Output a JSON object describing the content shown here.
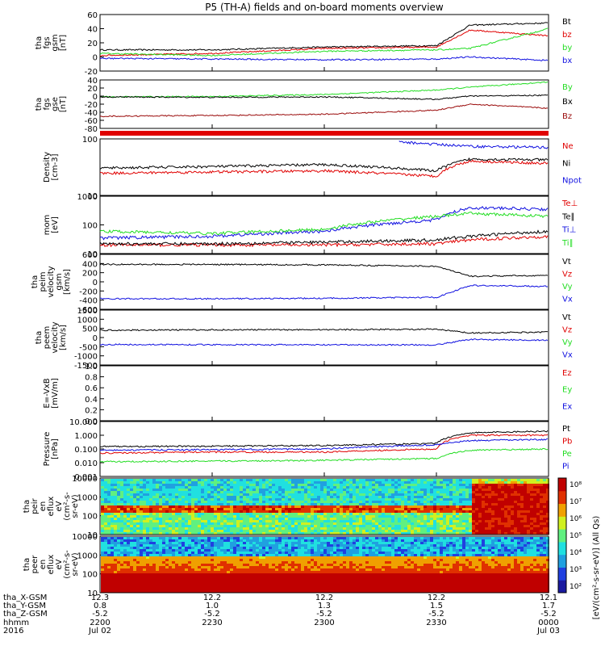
{
  "title": "P5 (TH-A) fields and on-board moments overview",
  "colors": {
    "black": "#000000",
    "red": "#e00000",
    "green": "#22dd22",
    "blue": "#1010e0",
    "darkred": "#9a0a0a"
  },
  "panels": [
    {
      "id": "fgs-gsm",
      "ylabel": [
        "tha",
        "fgs",
        "gsm",
        "[nT]"
      ],
      "ticks": [
        "60",
        "40",
        "20",
        "0",
        "-20"
      ],
      "legend": [
        {
          "t": "Bt",
          "c": "black"
        },
        {
          "t": "bz",
          "c": "red"
        },
        {
          "t": "by",
          "c": "green"
        },
        {
          "t": "bx",
          "c": "blue"
        }
      ]
    },
    {
      "id": "fgs-gse",
      "ylabel": [
        "tha",
        "fgs",
        "gse",
        "[nT]"
      ],
      "ticks": [
        "40",
        "20",
        "0",
        "-20",
        "-40",
        "-60",
        "-80"
      ],
      "legend": [
        {
          "t": "By",
          "c": "green"
        },
        {
          "t": "Bx",
          "c": "black"
        },
        {
          "t": "Bz",
          "c": "darkred"
        }
      ]
    },
    {
      "id": "density",
      "ylabel": [
        "Density",
        "[cm-3]"
      ],
      "ticks": [
        "100",
        "10"
      ],
      "legend": [
        {
          "t": "Ne",
          "c": "red"
        },
        {
          "t": "Ni",
          "c": "black"
        },
        {
          "t": "Npot",
          "c": "blue"
        }
      ]
    },
    {
      "id": "temperature",
      "ylabel": [
        "mom",
        "[eV]"
      ],
      "ticks": [
        "1000",
        "100",
        "10"
      ],
      "legend": [
        {
          "t": "Te⊥",
          "c": "red"
        },
        {
          "t": "Te∥",
          "c": "black"
        },
        {
          "t": "Ti⊥",
          "c": "blue"
        },
        {
          "t": "Ti∥",
          "c": "green"
        }
      ]
    },
    {
      "id": "peim-velocity",
      "ylabel": [
        "tha",
        "peim",
        "velocity",
        "gsm",
        "[km/s]"
      ],
      "ticks": [
        "600",
        "400",
        "200",
        "0",
        "-200",
        "-400",
        "-600"
      ],
      "legend": [
        {
          "t": "Vt",
          "c": "black"
        },
        {
          "t": "Vz",
          "c": "red"
        },
        {
          "t": "Vy",
          "c": "green"
        },
        {
          "t": "Vx",
          "c": "blue"
        }
      ]
    },
    {
      "id": "peem-velocity",
      "ylabel": [
        "tha",
        "peem",
        "velocity",
        "[km/s]"
      ],
      "ticks": [
        "1500",
        "1000",
        "500",
        "0",
        "-500",
        "-1000",
        "-1500"
      ],
      "legend": [
        {
          "t": "Vt",
          "c": "black"
        },
        {
          "t": "Vz",
          "c": "red"
        },
        {
          "t": "Vy",
          "c": "green"
        },
        {
          "t": "Vx",
          "c": "blue"
        }
      ]
    },
    {
      "id": "efield",
      "ylabel": [
        "E=-VxB",
        "[mV/m]"
      ],
      "ticks": [
        "1.0",
        "0.8",
        "0.6",
        "0.4",
        "0.2",
        "0.0"
      ],
      "legend": [
        {
          "t": "Ez",
          "c": "red"
        },
        {
          "t": "Ey",
          "c": "green"
        },
        {
          "t": "Ex",
          "c": "blue"
        }
      ]
    },
    {
      "id": "pressure",
      "ylabel": [
        "Pressure",
        "[nPa]"
      ],
      "ticks": [
        "10.000",
        "1.000",
        "0.100",
        "0.010",
        "0.001"
      ],
      "legend": [
        {
          "t": "Pt",
          "c": "black"
        },
        {
          "t": "Pb",
          "c": "red"
        },
        {
          "t": "Pe",
          "c": "green"
        },
        {
          "t": "Pi",
          "c": "blue"
        }
      ]
    },
    {
      "id": "peir-spectrogram",
      "ylabel": [
        "tha",
        "peir",
        "en",
        "eflux",
        "eV",
        "(cm²-s-",
        "sr-eV)"
      ],
      "ticks": [
        "10000",
        "1000",
        "100",
        "10"
      ],
      "legend": []
    },
    {
      "id": "peer-spectrogram",
      "ylabel": [
        "tha",
        "peer",
        "en",
        "eflux",
        "eV",
        "(cm²-s-",
        "sr-eV)"
      ],
      "ticks": [
        "10000",
        "1000",
        "100",
        "10"
      ],
      "legend": []
    }
  ],
  "colorbar": {
    "ticks": [
      "10⁸",
      "10⁷",
      "10⁶",
      "10⁵",
      "10⁴",
      "10³",
      "10²"
    ],
    "label": "[eV/(cm²-s-sr-eV)] (All Qs)"
  },
  "xaxis": {
    "row_labels": [
      "tha_X-GSM",
      "tha_Y-GSM",
      "tha_Z-GSM",
      "hhmm",
      "2016"
    ],
    "columns": [
      [
        "12.3",
        "0.8",
        "-5.2",
        "2200",
        "Jul 02"
      ],
      [
        "12.2",
        "1.0",
        "-5.2",
        "2230",
        ""
      ],
      [
        "12.2",
        "1.3",
        "-5.2",
        "2300",
        ""
      ],
      [
        "12.2",
        "1.5",
        "-5.2",
        "2330",
        ""
      ],
      [
        "12.1",
        "1.7",
        "-5.2",
        "0000",
        "Jul 03"
      ]
    ]
  },
  "chart_data": {
    "type": "line",
    "title": "P5 (TH-A) fields and on-board moments overview",
    "x_time_range": [
      "2016-07-02 22:00",
      "2016-07-03 00:00"
    ],
    "xlabel": "hhmm",
    "series": [
      {
        "panel": "fgs-gsm",
        "name": "Bt",
        "x": [
          "22:00",
          "22:30",
          "23:00",
          "23:30",
          "23:39",
          "00:00"
        ],
        "values": [
          10,
          10,
          14,
          16,
          45,
          48
        ],
        "ylim": [
          -20,
          60
        ]
      },
      {
        "panel": "fgs-gsm",
        "name": "bz",
        "x": [
          "22:00",
          "22:30",
          "23:00",
          "23:30",
          "23:39",
          "00:00"
        ],
        "values": [
          2,
          5,
          12,
          14,
          38,
          30
        ],
        "ylim": [
          -20,
          60
        ]
      },
      {
        "panel": "fgs-gsm",
        "name": "by",
        "x": [
          "22:00",
          "22:30",
          "23:00",
          "23:30",
          "23:39",
          "00:00"
        ],
        "values": [
          5,
          2,
          8,
          10,
          12,
          40
        ],
        "ylim": [
          -20,
          60
        ]
      },
      {
        "panel": "fgs-gsm",
        "name": "bx",
        "x": [
          "22:00",
          "22:30",
          "23:00",
          "23:30",
          "23:39",
          "00:00"
        ],
        "values": [
          -2,
          -3,
          -4,
          -3,
          0,
          -5
        ],
        "ylim": [
          -20,
          60
        ]
      },
      {
        "panel": "fgs-gse",
        "name": "By",
        "x": [
          "22:00",
          "22:30",
          "23:00",
          "23:30",
          "23:39",
          "00:00"
        ],
        "values": [
          -2,
          -1,
          4,
          15,
          22,
          35
        ],
        "ylim": [
          -80,
          40
        ]
      },
      {
        "panel": "fgs-gse",
        "name": "Bx",
        "x": [
          "22:00",
          "22:30",
          "23:00",
          "23:30",
          "23:39",
          "00:00"
        ],
        "values": [
          -2,
          -3,
          -2,
          -8,
          0,
          2
        ],
        "ylim": [
          -80,
          40
        ]
      },
      {
        "panel": "fgs-gse",
        "name": "Bz",
        "x": [
          "22:00",
          "22:30",
          "23:00",
          "23:30",
          "23:39",
          "00:00"
        ],
        "values": [
          -50,
          -48,
          -45,
          -35,
          -20,
          -30
        ],
        "ylim": [
          -80,
          40
        ]
      },
      {
        "panel": "density",
        "name": "Ne",
        "x": [
          "22:00",
          "22:30",
          "23:00",
          "23:30",
          "23:39",
          "00:00"
        ],
        "values": [
          8,
          9,
          10,
          6,
          25,
          20
        ],
        "ylim": [
          1,
          200
        ],
        "scale": "log"
      },
      {
        "panel": "density",
        "name": "Ni",
        "x": [
          "22:00",
          "22:30",
          "23:00",
          "23:30",
          "23:39",
          "00:00"
        ],
        "values": [
          13,
          15,
          18,
          10,
          30,
          28
        ],
        "ylim": [
          1,
          200
        ],
        "scale": "log"
      },
      {
        "panel": "density",
        "name": "Npot",
        "x": [
          "23:20",
          "23:30",
          "23:39",
          "00:00"
        ],
        "values": [
          150,
          120,
          100,
          90
        ],
        "ylim": [
          1,
          200
        ],
        "scale": "log"
      },
      {
        "panel": "temperature",
        "name": "Te⊥",
        "x": [
          "22:00",
          "22:30",
          "23:00",
          "23:30",
          "23:39",
          "00:00"
        ],
        "values": [
          20,
          20,
          20,
          22,
          30,
          40
        ],
        "ylim": [
          10,
          1000
        ],
        "scale": "log"
      },
      {
        "panel": "temperature",
        "name": "Te∥",
        "x": [
          "22:00",
          "22:30",
          "23:00",
          "23:30",
          "23:39",
          "00:00"
        ],
        "values": [
          22,
          22,
          25,
          30,
          40,
          60
        ],
        "ylim": [
          10,
          1000
        ],
        "scale": "log"
      },
      {
        "panel": "temperature",
        "name": "Ti⊥",
        "x": [
          "22:00",
          "22:30",
          "23:00",
          "23:30",
          "23:39",
          "00:00"
        ],
        "values": [
          35,
          40,
          60,
          150,
          400,
          350
        ],
        "ylim": [
          10,
          1000
        ],
        "scale": "log"
      },
      {
        "panel": "temperature",
        "name": "Ti∥",
        "x": [
          "22:00",
          "22:30",
          "23:00",
          "23:30",
          "23:39",
          "00:00"
        ],
        "values": [
          60,
          50,
          70,
          200,
          250,
          200
        ],
        "ylim": [
          10,
          1000
        ],
        "scale": "log"
      },
      {
        "panel": "peim-velocity",
        "name": "Vt",
        "x": [
          "22:00",
          "22:30",
          "23:00",
          "23:30",
          "23:39",
          "00:00"
        ],
        "values": [
          380,
          380,
          370,
          340,
          120,
          140
        ],
        "ylim": [
          -600,
          600
        ]
      },
      {
        "panel": "peim-velocity",
        "name": "Vx",
        "x": [
          "22:00",
          "22:30",
          "23:00",
          "23:30",
          "23:39",
          "00:00"
        ],
        "values": [
          -370,
          -370,
          -360,
          -340,
          -80,
          -100
        ],
        "ylim": [
          -600,
          600
        ]
      },
      {
        "panel": "peem-velocity",
        "name": "Vt",
        "x": [
          "22:00",
          "22:30",
          "23:00",
          "23:30",
          "23:39",
          "00:00"
        ],
        "values": [
          400,
          420,
          430,
          450,
          250,
          300
        ],
        "ylim": [
          -1500,
          1500
        ]
      },
      {
        "panel": "peem-velocity",
        "name": "Vx",
        "x": [
          "22:00",
          "22:30",
          "23:00",
          "23:30",
          "23:39",
          "00:00"
        ],
        "values": [
          -380,
          -390,
          -400,
          -400,
          -100,
          -150
        ],
        "ylim": [
          -1500,
          1500
        ]
      },
      {
        "panel": "pressure",
        "name": "Pt",
        "x": [
          "22:00",
          "22:30",
          "23:00",
          "23:30",
          "23:39",
          "00:00"
        ],
        "values": [
          0.15,
          0.16,
          0.18,
          0.25,
          1.5,
          2.0
        ],
        "ylim": [
          0.001,
          10
        ],
        "scale": "log"
      },
      {
        "panel": "pressure",
        "name": "Pb",
        "x": [
          "22:00",
          "22:30",
          "23:00",
          "23:30",
          "23:39",
          "00:00"
        ],
        "values": [
          0.05,
          0.06,
          0.06,
          0.1,
          1.0,
          1.0
        ],
        "ylim": [
          0.001,
          10
        ],
        "scale": "log"
      },
      {
        "panel": "pressure",
        "name": "Pe",
        "x": [
          "22:00",
          "22:30",
          "23:00",
          "23:30",
          "23:39",
          "00:00"
        ],
        "values": [
          0.012,
          0.013,
          0.015,
          0.02,
          0.08,
          0.1
        ],
        "ylim": [
          0.001,
          10
        ],
        "scale": "log"
      },
      {
        "panel": "pressure",
        "name": "Pi",
        "x": [
          "22:00",
          "22:30",
          "23:00",
          "23:30",
          "23:39",
          "00:00"
        ],
        "values": [
          0.08,
          0.09,
          0.1,
          0.2,
          0.4,
          0.5
        ],
        "ylim": [
          0.001,
          10
        ],
        "scale": "log"
      }
    ]
  }
}
